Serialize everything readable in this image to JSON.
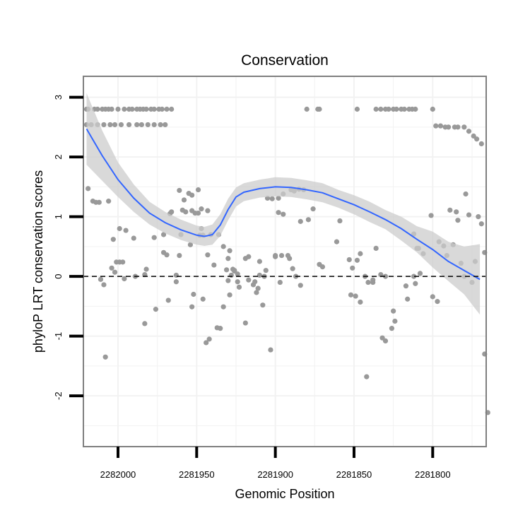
{
  "chart_data": {
    "type": "scatter",
    "title": "Conservation",
    "xlabel": "Genomic Position",
    "ylabel": "phyloP LRT conservation scores",
    "x_axis_reversed": true,
    "xlim": [
      2282022,
      2281766
    ],
    "ylim": [
      -2.85,
      3.35
    ],
    "x_ticks": [
      2282000,
      2281950,
      2281900,
      2281850,
      2281800
    ],
    "x_tick_labels": [
      "2282000",
      "2281950",
      "2281900",
      "2281850",
      "2281800"
    ],
    "y_ticks": [
      -2,
      -1,
      0,
      1,
      2,
      3
    ],
    "y_tick_labels": [
      "-2",
      "-1",
      "0",
      "1",
      "2",
      "3"
    ],
    "grid": true,
    "reference_line": {
      "y": 0,
      "style": "dashed"
    },
    "colors": {
      "points": "#999999",
      "smooth_line": "#3366ff",
      "ribbon": "#cccccc",
      "panel_border": "#7f7f7f",
      "grid": "#f2f2f2"
    },
    "series": [
      {
        "kind": "points",
        "x": [
          2282020,
          2282019,
          2282015,
          2282013,
          2282010,
          2282008,
          2282006,
          2282004,
          2282000,
          2281996,
          2281993,
          2281991,
          2281988,
          2281986,
          2281984,
          2281982,
          2281979,
          2281977,
          2281974,
          2281972,
          2281969,
          2281966,
          2282020,
          2282017,
          2282013,
          2282009,
          2282005,
          2282002,
          2281998,
          2281993,
          2281988,
          2281985,
          2281981,
          2281977,
          2281973,
          2281970,
          2282019,
          2282016,
          2282014,
          2282012,
          2282006,
          2282003,
          2281995,
          2281990,
          2281977,
          2281961,
          2282011,
          2282009,
          2282004,
          2282001,
          2281999,
          2281997,
          2281989,
          2281983,
          2281982,
          2281963,
          2281958,
          2281955,
          2281953,
          2281951,
          2281948,
          2281946,
          2282008,
          2282002,
          2281996,
          2281983,
          2281976,
          2281953,
          2281952,
          2281946,
          2281944,
          2281942,
          2281937,
          2281935,
          2281933,
          2281930,
          2281929,
          2281926,
          2281926,
          2281924,
          2281919,
          2281917,
          2281913,
          2281911,
          2281910,
          2281908,
          2281906,
          2281903,
          2281900,
          2281896,
          2281892,
          2281891,
          2281889,
          2281887,
          2281884,
          2281999,
          2281971,
          2281967,
          2281966,
          2281960,
          2281957,
          2281947,
          2281943,
          2281941,
          2281936,
          2281933,
          2281930,
          2281929,
          2281927,
          2281923,
          2281919,
          2281917,
          2281914,
          2281912,
          2281910,
          2281907,
          2281900,
          2281897,
          2281884,
          2281879,
          2281859,
          2281971,
          2281969,
          2281961,
          2281959,
          2281953,
          2281949,
          2281949,
          2281943,
          2281939,
          2281931,
          2281928,
          2281924,
          2281905,
          2281902,
          2281898,
          2281895,
          2281968,
          2281963,
          2281954,
          2281947,
          2281898,
          2281895,
          2281890,
          2281888,
          2281885,
          2281882,
          2281876,
          2281872,
          2281870,
          2281861,
          2281853,
          2281852,
          2281849,
          2281846,
          2281842,
          2281851,
          2281838,
          2281833,
          2281830,
          2281825,
          2281812,
          2281810,
          2281806,
          2281801,
          2281796,
          2281793,
          2281791,
          2281789,
          2281787,
          2281785,
          2281784,
          2281782,
          2281780,
          2281779,
          2281777,
          2281775,
          2281773,
          2281771,
          2281769,
          2281767,
          2281767,
          2281765,
          2281848,
          2281846,
          2281843,
          2281841,
          2281838,
          2281836,
          2281832,
          2281830,
          2281826,
          2281824,
          2281817,
          2281816,
          2281812,
          2281811,
          2281809,
          2281808,
          2281800,
          2281797,
          2281880,
          2281873,
          2281872,
          2281848,
          2281836,
          2281833,
          2281830,
          2281828,
          2281825,
          2281823,
          2281820,
          2281818,
          2281815,
          2281813,
          2281811,
          2281800,
          2281798,
          2281795,
          2281792,
          2281790,
          2281786,
          2281784,
          2281780,
          2281777,
          2281774,
          2281772,
          2281769
        ],
        "y": [
          2.8,
          2.8,
          2.8,
          2.8,
          2.8,
          2.8,
          2.8,
          2.8,
          2.8,
          2.8,
          2.8,
          2.8,
          2.8,
          2.8,
          2.8,
          2.8,
          2.8,
          2.8,
          2.8,
          2.8,
          2.8,
          2.8,
          2.54,
          2.54,
          2.54,
          2.54,
          2.54,
          2.54,
          2.54,
          2.54,
          2.54,
          2.54,
          2.54,
          2.54,
          2.54,
          2.54,
          1.47,
          1.26,
          1.24,
          1.24,
          1.26,
          0.62,
          0.77,
          0.64,
          0.65,
          1.44,
          -0.05,
          -0.14,
          0.14,
          0.24,
          0.24,
          0.24,
          0.0,
          0.03,
          0.12,
          0.02,
          1.28,
          1.39,
          1.1,
          1.06,
          0.69,
          0.69,
          -1.35,
          0.07,
          -0.04,
          -0.79,
          -0.55,
          -0.51,
          -0.3,
          -0.38,
          -1.11,
          -1.05,
          -0.86,
          -0.87,
          -0.51,
          -0.07,
          -0.31,
          0.1,
          0.09,
          0.04,
          -0.78,
          0.33,
          -0.09,
          -0.2,
          0.02,
          -0.48,
          0.1,
          -1.23,
          0.33,
          0.35,
          0.35,
          0.3,
          0.13,
          0.0,
          -0.15,
          0.8,
          0.7,
          1.05,
          1.08,
          0.7,
          1.08,
          0.8,
          1.1,
          0.7,
          0.7,
          0.5,
          0.3,
          0.43,
          0.12,
          -0.18,
          0.3,
          -0.06,
          -0.14,
          -0.27,
          0.25,
          0.0,
          0.35,
          -0.1,
          0.92,
          0.95,
          0.93,
          0.4,
          0.36,
          0.35,
          1.11,
          1.36,
          1.45,
          1.06,
          0.36,
          0.19,
          0.11,
          0.02,
          -0.09,
          1.31,
          1.3,
          1.31,
          1.38,
          -0.4,
          -0.09,
          0.53,
          1.13,
          1.07,
          1.04,
          1.45,
          1.43,
          1.46,
          1.45,
          1.13,
          0.2,
          0.16,
          0.58,
          0.28,
          -0.31,
          -0.33,
          -0.43,
          -1.68,
          0.14,
          -0.06,
          0.03,
          0.0,
          -0.58,
          0.71,
          0.47,
          0.38,
          1.02,
          0.58,
          0.51,
          0.35,
          1.11,
          0.53,
          1.08,
          0.94,
          0.22,
          0.0,
          1.38,
          1.03,
          -0.1,
          0.25,
          1.0,
          0.88,
          -1.3,
          0.4,
          -2.28,
          0.27,
          0.38,
          0.0,
          -0.1,
          -0.1,
          0.47,
          -1.03,
          -1.08,
          -0.87,
          -0.75,
          -0.16,
          -0.38,
          0.0,
          -0.12,
          0.47,
          0.05,
          -0.34,
          -0.42,
          2.8,
          2.8,
          2.8,
          2.8,
          2.8,
          2.8,
          2.8,
          2.8,
          2.8,
          2.8,
          2.8,
          2.8,
          2.8,
          2.8,
          2.8,
          2.8,
          2.52,
          2.52,
          2.5,
          2.5,
          2.5,
          2.5,
          2.5,
          2.43,
          2.35,
          2.3,
          2.22
        ]
      },
      {
        "kind": "smooth",
        "x": [
          2282020,
          2282010,
          2282000,
          2281990,
          2281980,
          2281970,
          2281960,
          2281950,
          2281945,
          2281940,
          2281935,
          2281930,
          2281925,
          2281920,
          2281910,
          2281900,
          2281890,
          2281880,
          2281870,
          2281860,
          2281850,
          2281840,
          2281830,
          2281820,
          2281810,
          2281800,
          2281790,
          2281780,
          2281770
        ],
        "y": [
          2.47,
          2.02,
          1.62,
          1.31,
          1.06,
          0.9,
          0.78,
          0.69,
          0.67,
          0.7,
          0.86,
          1.12,
          1.33,
          1.41,
          1.47,
          1.5,
          1.49,
          1.45,
          1.4,
          1.3,
          1.2,
          1.08,
          0.95,
          0.8,
          0.62,
          0.45,
          0.25,
          0.1,
          -0.05
        ],
        "ci_low": [
          1.87,
          1.6,
          1.33,
          1.08,
          0.87,
          0.72,
          0.61,
          0.53,
          0.51,
          0.53,
          0.68,
          0.94,
          1.17,
          1.26,
          1.32,
          1.34,
          1.33,
          1.29,
          1.24,
          1.15,
          1.04,
          0.91,
          0.79,
          0.6,
          0.4,
          0.15,
          -0.08,
          -0.3,
          -0.64
        ],
        "ci_high": [
          3.07,
          2.44,
          1.91,
          1.54,
          1.25,
          1.08,
          0.95,
          0.85,
          0.83,
          0.87,
          1.04,
          1.3,
          1.49,
          1.56,
          1.62,
          1.66,
          1.65,
          1.61,
          1.56,
          1.45,
          1.36,
          1.25,
          1.11,
          1.0,
          0.84,
          0.75,
          0.58,
          0.5,
          0.54
        ]
      }
    ]
  }
}
